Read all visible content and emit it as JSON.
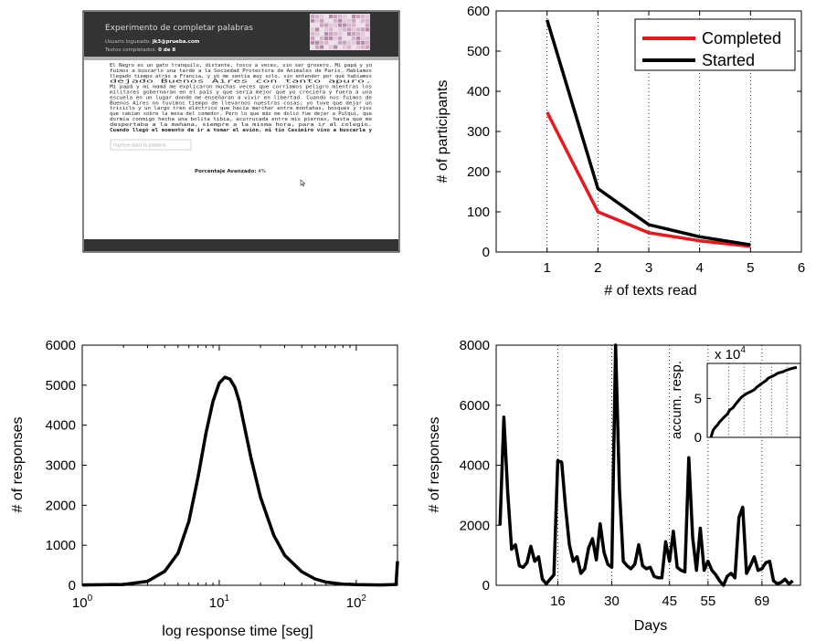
{
  "screenshot": {
    "title": "Experimento de completar palabras",
    "user_label": "Usuario logueado:",
    "user_value": "jk3@prueba.com",
    "texts_label": "Textos completados:",
    "texts_value": "0 de 8",
    "paragraph_lines": [
      "El Negro es un gato tranquilo, distante, tosco a veces, sin ser grosero. Mi papá y yo",
      "fuimos a buscarlo una tarde a la Sociedad Protectora de Animales de París. Habíamos",
      "llegado tiempo atrás a Francia, y yo me sentía muy solo, sin entender por qué habíamos",
      "dejado Buenos Aires con tanto apuro.",
      "Mi papá y mi mamá me explicaron muchas veces que corríamos peligro mientras los",
      "militares gobernaran en el país y que sería mejor que yo creciera y fuera a una",
      "escuela en un lugar donde me enseñaran a vivir en libertad. Cuando nos fuimos de",
      "Buenos Aires no tuvimos tiempo de llevarnos nuestras cosas; yo tuve que dejar un",
      "triciclo y un largo tren eléctrico que hacía marchar entre montañas, bosques y ríos",
      "que cabían sobre la mesa del comedor. Pero lo que más me dolió fue dejar a Pulqui, que",
      "dormía conmigo hecha una bolita tibia, acurrucada entre mis piernas, hasta que me",
      "despertaba a la mañana, siempre a la misma hora, para ir al colegio.",
      "Cuando llegó el momento de ir a tomar el avión, mi tío Casimiro vino a buscarla y"
    ],
    "input_placeholder": "Ingrese aquí la palabra",
    "progress_label": "Porcentaje Avanzado:",
    "progress_value": "4%"
  },
  "chart_data": [
    {
      "type": "line",
      "xlabel": "# of texts read",
      "ylabel": "# of participants",
      "xlim": [
        0,
        6
      ],
      "ylim": [
        0,
        600
      ],
      "xticks": [
        1,
        2,
        3,
        4,
        5,
        6
      ],
      "yticks": [
        0,
        100,
        200,
        300,
        400,
        500,
        600
      ],
      "grid": "vertical dotted lines at x=1..5",
      "legend": "top-right",
      "x": [
        1,
        2,
        3,
        4,
        5
      ],
      "series": [
        {
          "name": "Completed",
          "color": "#e8181c",
          "values": [
            348,
            100,
            48,
            28,
            14
          ]
        },
        {
          "name": "Started",
          "color": "#000000",
          "values": [
            578,
            158,
            68,
            38,
            18
          ]
        }
      ]
    },
    {
      "type": "line",
      "xlabel": "log response time [seg]",
      "ylabel": "# of responses",
      "xscale": "log",
      "xlim": [
        1,
        200
      ],
      "ylim": [
        0,
        6000
      ],
      "yticks": [
        0,
        1000,
        2000,
        3000,
        4000,
        5000,
        6000
      ],
      "x": [
        1,
        2,
        3,
        4,
        5,
        6,
        7,
        8,
        9,
        10,
        11,
        12,
        13,
        14,
        15,
        17,
        20,
        25,
        30,
        40,
        50,
        60,
        80,
        100,
        150,
        195,
        200
      ],
      "series": [
        {
          "values": [
            10,
            20,
            100,
            350,
            800,
            1600,
            2700,
            3800,
            4600,
            5050,
            5200,
            5150,
            4950,
            4600,
            4100,
            3200,
            2200,
            1250,
            750,
            340,
            160,
            80,
            30,
            15,
            10,
            20,
            600
          ]
        }
      ]
    },
    {
      "type": "line",
      "xlabel": "Days",
      "ylabel": "# of responses",
      "xlim": [
        0,
        79
      ],
      "ylim": [
        0,
        8000
      ],
      "xticks": [
        16,
        30,
        45,
        55,
        69
      ],
      "yticks": [
        0,
        2000,
        4000,
        6000,
        8000
      ],
      "grid": "vertical dotted lines at tick positions",
      "x": [
        1,
        2,
        3,
        4,
        5,
        6,
        7,
        8,
        9,
        10,
        11,
        12,
        13,
        14,
        15,
        16,
        17,
        18,
        19,
        20,
        21,
        22,
        23,
        24,
        25,
        26,
        27,
        28,
        29,
        30,
        31,
        32,
        33,
        34,
        35,
        36,
        37,
        38,
        39,
        40,
        41,
        42,
        43,
        44,
        45,
        46,
        47,
        48,
        49,
        50,
        51,
        52,
        53,
        54,
        55,
        56,
        57,
        58,
        59,
        60,
        61,
        62,
        63,
        64,
        65,
        66,
        67,
        68,
        69,
        70,
        71,
        72,
        73,
        74,
        75,
        76,
        77
      ],
      "series": [
        {
          "values": [
            2000,
            5600,
            3100,
            1200,
            1350,
            650,
            600,
            750,
            1300,
            800,
            950,
            200,
            50,
            200,
            350,
            4150,
            4100,
            2600,
            1350,
            800,
            950,
            400,
            550,
            1250,
            1550,
            850,
            2050,
            1100,
            700,
            600,
            8000,
            3200,
            800,
            650,
            550,
            700,
            1350,
            650,
            550,
            600,
            300,
            250,
            250,
            1450,
            800,
            1800,
            600,
            500,
            450,
            4250,
            1600,
            500,
            1900,
            500,
            800,
            500,
            350,
            150,
            0,
            300,
            400,
            250,
            2250,
            2600,
            400,
            650,
            950,
            500,
            550,
            750,
            800,
            150,
            50,
            100,
            200,
            50,
            150
          ]
        }
      ],
      "inset": {
        "ylabel": "accum. resp.",
        "exponent_label": "x 10",
        "exponent_power": "4",
        "ylim": [
          0,
          9
        ],
        "yticks": [
          0,
          5
        ],
        "x": [
          0,
          2,
          4,
          6,
          8,
          10,
          12,
          15,
          17,
          20,
          22,
          25,
          28,
          30,
          32,
          35,
          38,
          40,
          42,
          45,
          48,
          50,
          52,
          55,
          58,
          60,
          62,
          65,
          68,
          70,
          72,
          75,
          78
        ],
        "values": [
          0,
          0.9,
          1.3,
          1.6,
          2.0,
          2.3,
          2.6,
          3.0,
          3.5,
          3.8,
          4.2,
          4.7,
          5.2,
          5.4,
          5.6,
          5.8,
          6.0,
          6.2,
          6.5,
          6.8,
          7.1,
          7.3,
          7.6,
          7.8,
          8.0,
          8.2,
          8.3,
          8.4,
          8.6,
          8.7,
          8.8,
          8.9,
          9.0
        ]
      }
    }
  ]
}
